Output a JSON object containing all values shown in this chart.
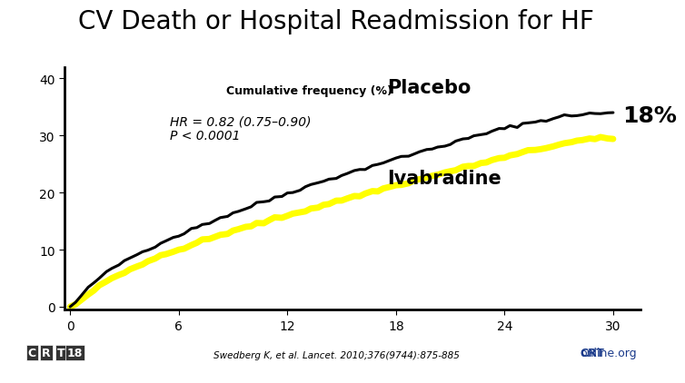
{
  "title": "CV Death or Hospital Readmission for HF",
  "title_fontsize": 20,
  "ylabel": "Cumulative frequency (%)",
  "ylabel_fontsize": 9,
  "xlabel_ticks": [
    0,
    6,
    12,
    18,
    24,
    30
  ],
  "yticks": [
    0,
    10,
    20,
    30,
    40
  ],
  "xlim": [
    -0.3,
    31.5
  ],
  "ylim": [
    -0.5,
    42
  ],
  "placebo_color": "#000000",
  "ivabradine_color": "#FFFF00",
  "placebo_label": "Placebo",
  "ivabradine_label": "Ivabradine",
  "annotation_line1": "HR = 0.82 (0.75–0.90)",
  "annotation_line2": "P < 0.0001",
  "pct_18_label": "18%",
  "background_color": "#ffffff",
  "footer_text": "Swedberg K, et al. Lancet. 2010;376(9744):875-885",
  "footer_bg": "#9daabf",
  "placebo_x": [
    0,
    0.3,
    0.6,
    1.0,
    1.3,
    1.6,
    2.0,
    2.3,
    2.7,
    3.0,
    3.3,
    3.7,
    4.0,
    4.3,
    4.7,
    5.0,
    5.3,
    5.7,
    6.0,
    6.3,
    6.7,
    7.0,
    7.3,
    7.7,
    8.0,
    8.3,
    8.7,
    9.0,
    9.3,
    9.7,
    10.0,
    10.3,
    10.7,
    11.0,
    11.3,
    11.7,
    12.0,
    12.3,
    12.7,
    13.0,
    13.3,
    13.7,
    14.0,
    14.3,
    14.7,
    15.0,
    15.3,
    15.7,
    16.0,
    16.3,
    16.7,
    17.0,
    17.3,
    17.7,
    18.0,
    18.3,
    18.7,
    19.0,
    19.3,
    19.7,
    20.0,
    20.3,
    20.7,
    21.0,
    21.3,
    21.7,
    22.0,
    22.3,
    22.7,
    23.0,
    23.3,
    23.7,
    24.0,
    24.3,
    24.7,
    25.0,
    25.3,
    25.7,
    26.0,
    26.3,
    26.7,
    27.0,
    27.3,
    27.7,
    28.0,
    28.3,
    28.7,
    29.0,
    29.3,
    29.7,
    30.0
  ],
  "placebo_y": [
    0,
    0.8,
    1.8,
    3.2,
    4.2,
    5.0,
    5.9,
    6.6,
    7.4,
    8.0,
    8.6,
    9.2,
    9.6,
    10.2,
    10.7,
    11.2,
    11.7,
    12.1,
    12.5,
    13.0,
    13.5,
    13.9,
    14.4,
    14.8,
    15.2,
    15.6,
    16.0,
    16.4,
    16.8,
    17.2,
    17.6,
    18.0,
    18.4,
    18.7,
    19.1,
    19.5,
    19.9,
    20.3,
    20.6,
    21.0,
    21.3,
    21.7,
    22.0,
    22.4,
    22.7,
    23.1,
    23.4,
    23.7,
    24.0,
    24.3,
    24.7,
    25.0,
    25.3,
    25.6,
    25.9,
    26.2,
    26.5,
    26.8,
    27.1,
    27.4,
    27.7,
    28.0,
    28.3,
    28.6,
    28.9,
    29.2,
    29.5,
    29.8,
    30.1,
    30.4,
    30.7,
    31.0,
    31.2,
    31.5,
    31.8,
    32.0,
    32.2,
    32.4,
    32.6,
    32.8,
    33.0,
    33.2,
    33.4,
    33.5,
    33.6,
    33.7,
    33.8,
    33.8,
    33.9,
    33.9,
    34.0
  ],
  "ivabradine_x": [
    0,
    0.3,
    0.6,
    1.0,
    1.3,
    1.6,
    2.0,
    2.3,
    2.7,
    3.0,
    3.3,
    3.7,
    4.0,
    4.3,
    4.7,
    5.0,
    5.3,
    5.7,
    6.0,
    6.3,
    6.7,
    7.0,
    7.3,
    7.7,
    8.0,
    8.3,
    8.7,
    9.0,
    9.3,
    9.7,
    10.0,
    10.3,
    10.7,
    11.0,
    11.3,
    11.7,
    12.0,
    12.3,
    12.7,
    13.0,
    13.3,
    13.7,
    14.0,
    14.3,
    14.7,
    15.0,
    15.3,
    15.7,
    16.0,
    16.3,
    16.7,
    17.0,
    17.3,
    17.7,
    18.0,
    18.3,
    18.7,
    19.0,
    19.3,
    19.7,
    20.0,
    20.3,
    20.7,
    21.0,
    21.3,
    21.7,
    22.0,
    22.3,
    22.7,
    23.0,
    23.3,
    23.7,
    24.0,
    24.3,
    24.7,
    25.0,
    25.3,
    25.7,
    26.0,
    26.3,
    26.7,
    27.0,
    27.3,
    27.7,
    28.0,
    28.3,
    28.7,
    29.0,
    29.3,
    29.7,
    30.0
  ],
  "ivabradine_y": [
    0,
    0.5,
    1.2,
    2.2,
    3.0,
    3.7,
    4.4,
    5.0,
    5.6,
    6.1,
    6.6,
    7.1,
    7.5,
    8.0,
    8.4,
    8.8,
    9.2,
    9.6,
    10.0,
    10.4,
    10.8,
    11.2,
    11.5,
    11.9,
    12.2,
    12.6,
    12.9,
    13.2,
    13.5,
    13.9,
    14.2,
    14.5,
    14.8,
    15.1,
    15.4,
    15.7,
    16.0,
    16.3,
    16.6,
    16.9,
    17.2,
    17.5,
    17.8,
    18.1,
    18.4,
    18.7,
    19.0,
    19.3,
    19.5,
    19.8,
    20.1,
    20.4,
    20.7,
    21.0,
    21.2,
    21.5,
    21.8,
    22.1,
    22.3,
    22.6,
    22.9,
    23.2,
    23.5,
    23.7,
    24.0,
    24.3,
    24.6,
    24.8,
    25.1,
    25.4,
    25.6,
    25.9,
    26.2,
    26.4,
    26.7,
    27.0,
    27.2,
    27.5,
    27.7,
    27.9,
    28.2,
    28.4,
    28.6,
    28.8,
    29.0,
    29.2,
    29.3,
    29.4,
    29.4,
    29.4,
    29.5
  ]
}
